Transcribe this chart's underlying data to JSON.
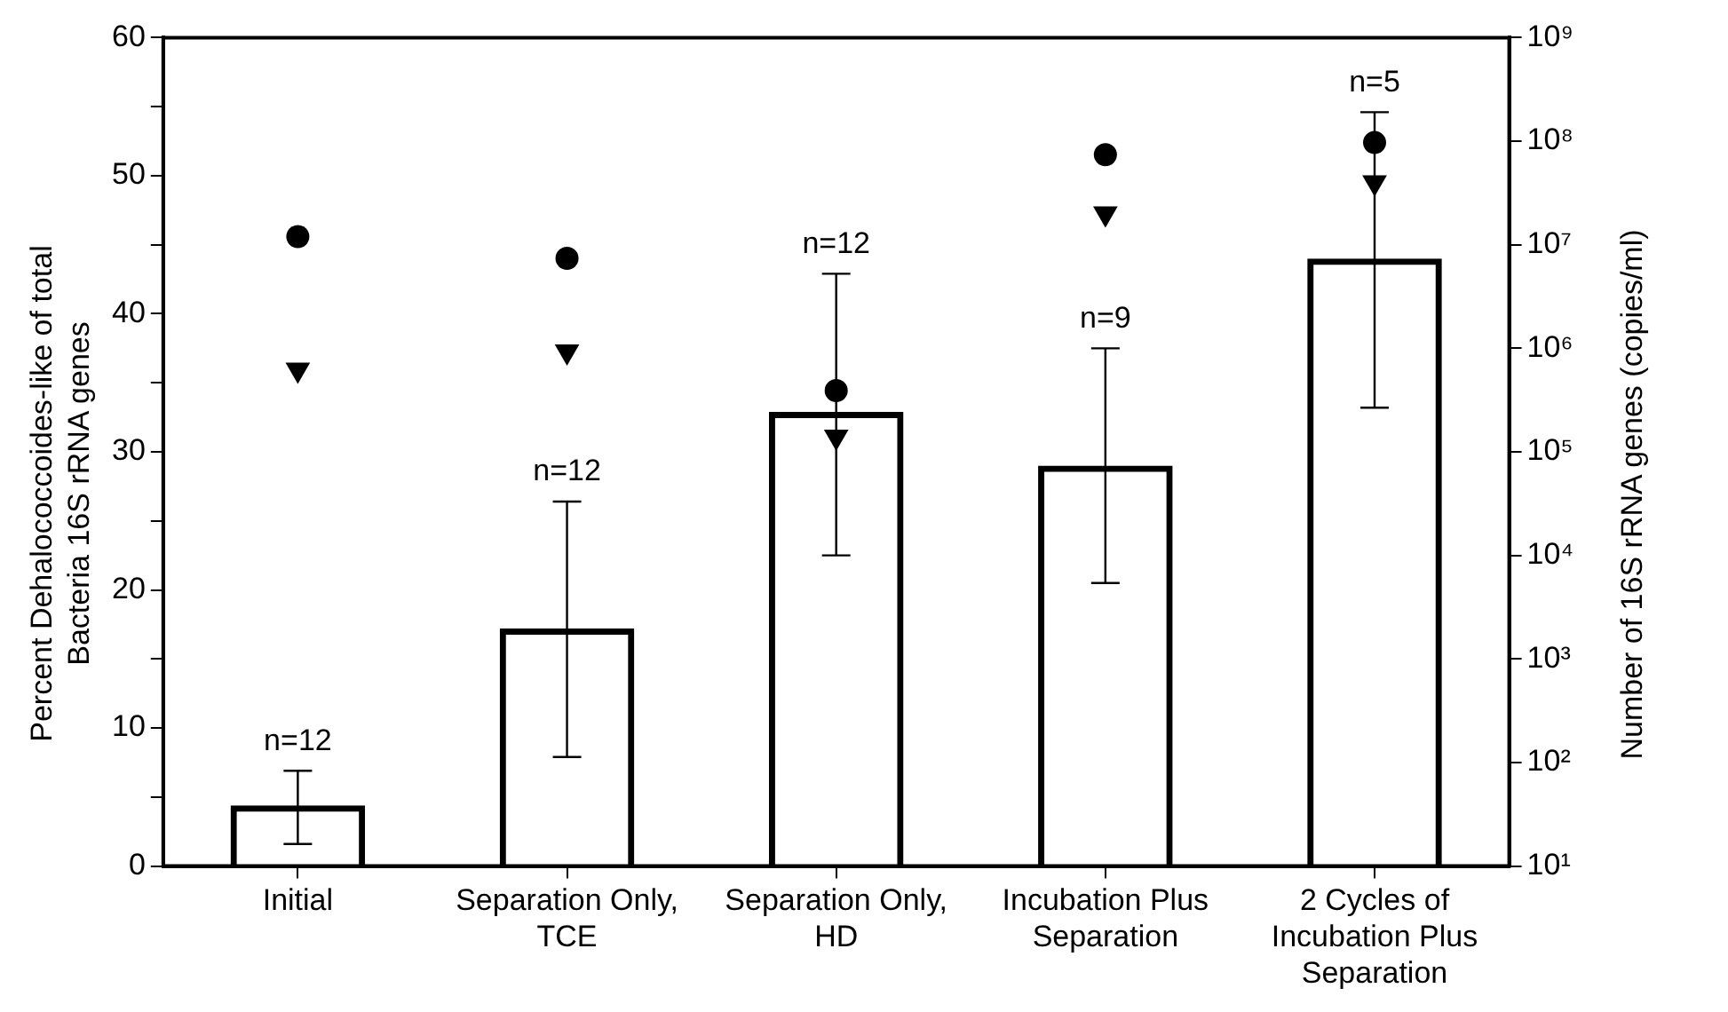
{
  "chart_data": {
    "type": "bar",
    "ylabel": "Percent Dehalococcoides-like of total Bacteria 16S rRNA genes",
    "y2label": "Number of 16S rRNA genes (copies/ml)",
    "categories": [
      "Initial",
      "Separation Only, TCE",
      "Separation Only, HD",
      "Incubation Plus Separation",
      "2 Cycles of Incubation Plus Separation"
    ],
    "series": [
      {
        "color": "#000000",
        "values": [
          4.4,
          17.2,
          32.9,
          29.0,
          44.0
        ],
        "errors": [
          [
            1.6,
            6.9
          ],
          [
            7.9,
            26.4
          ],
          [
            22.5,
            42.9
          ],
          [
            20.5,
            37.5
          ],
          [
            33.2,
            54.6
          ]
        ]
      },
      {
        "type": "scatter",
        "axis": "y2",
        "marker": "circle",
        "color": "#000000",
        "values": [
          12000000,
          7400000,
          390000,
          74000000,
          97000000
        ]
      },
      {
        "type": "scatter",
        "axis": "y2",
        "marker": "triangle",
        "color": "#000000",
        "values": [
          620000,
          930000,
          140000,
          20000000,
          40000000
        ]
      }
    ],
    "ylim": [
      0,
      60
    ],
    "yticks": [
      0,
      {
        "value": 5,
        "label": null
      },
      10,
      {
        "value": 15,
        "label": null
      },
      20,
      {
        "value": 25,
        "label": null
      },
      30,
      {
        "value": 35,
        "label": null
      },
      40,
      {
        "value": 45,
        "label": null
      },
      50,
      {
        "value": 55,
        "label": null
      },
      60
    ],
    "y2lim": [
      10,
      1000000000
    ],
    "y2ticks": [
      {
        "value": 10,
        "label": "10¹"
      },
      {
        "value": 100,
        "label": "10²"
      },
      {
        "value": 1000,
        "label": "10³"
      },
      {
        "value": 10000,
        "label": "10⁴"
      },
      {
        "value": 100000,
        "label": "10⁵"
      },
      {
        "value": 1000000,
        "label": "10⁶"
      },
      {
        "value": 10000000,
        "label": "10⁷"
      },
      {
        "value": 100000000,
        "label": "10⁸"
      },
      {
        "value": 1000000000,
        "label": "10⁹"
      }
    ],
    "log": "y2",
    "grid": false,
    "legend": false,
    "annotations": [
      {
        "text": "n=12",
        "x": "Initial",
        "y": 6.9
      },
      {
        "text": "n=12",
        "x": "Separation Only, TCE",
        "y": 26.4
      },
      {
        "text": "n=12",
        "x": "Separation Only, HD",
        "y": 42.9
      },
      {
        "text": "n=9",
        "x": "Incubation Plus Separation",
        "y": 37.5
      },
      {
        "text": "n=5",
        "x": "2 Cycles of Incubation Plus Separation",
        "y": 54.6
      }
    ]
  }
}
